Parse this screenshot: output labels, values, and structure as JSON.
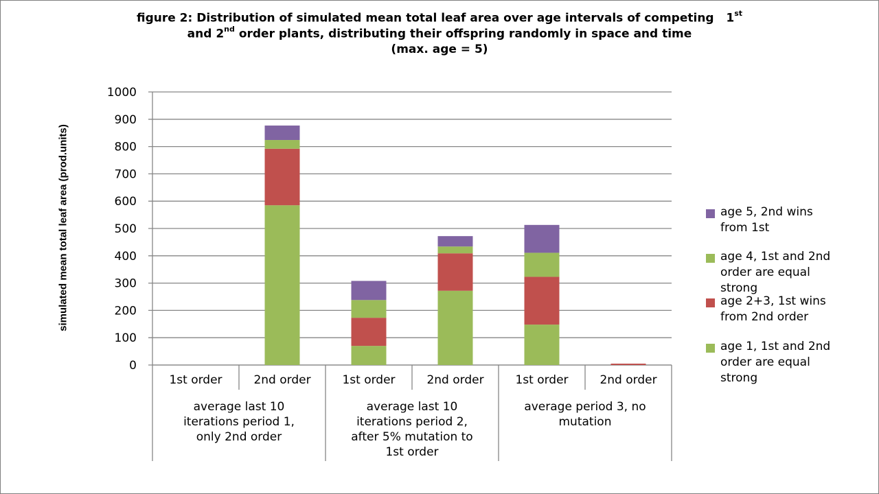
{
  "title": {
    "line1_prefix": "figure 2: Distribution of simulated mean total leaf area over age intervals of competing",
    "line1_num": "1",
    "line1_sup": "st",
    "line2_prefix": "and 2",
    "line2_sup": "nd",
    "line2_rest": "order plants, distributing their offspring randomly in space and time",
    "line3": "(max. age = 5)"
  },
  "chart_data": {
    "type": "bar",
    "stacked": true,
    "ylabel": "simulated mean total leaf area (prod.units)",
    "ylim": [
      0,
      1000
    ],
    "ytick_step": 100,
    "yticks": [
      "0",
      "100",
      "200",
      "300",
      "400",
      "500",
      "600",
      "700",
      "800",
      "900",
      "1000"
    ],
    "grid": true,
    "legend_position": "right",
    "groups": [
      {
        "label": "average last 10 iterations period 1, only 2nd order",
        "lines": [
          "average last 10",
          "iterations period 1,",
          "only 2nd order"
        ],
        "categories": [
          "1st order",
          "2nd order"
        ]
      },
      {
        "label": "average last 10 iterations period 2, after 5% mutation to 1st order",
        "lines": [
          "average last 10",
          "iterations period 2,",
          "after 5% mutation to",
          "1st order"
        ],
        "categories": [
          "1st order",
          "2nd order"
        ]
      },
      {
        "label": "average period 3, no mutation",
        "lines": [
          "average period 3, no",
          "mutation"
        ],
        "categories": [
          "1st order",
          "2nd order"
        ]
      }
    ],
    "categories": [
      "1st order",
      "2nd order",
      "1st order",
      "2nd order",
      "1st order",
      "2nd order"
    ],
    "series": [
      {
        "name": "age 1, 1st and 2nd order are equal strong",
        "legend_lines": [
          "age 1, 1st and 2nd",
          "order are equal",
          "strong"
        ],
        "color": "#9bbb59",
        "values": [
          0,
          585,
          70,
          272,
          148,
          0
        ]
      },
      {
        "name": "age 2+3, 1st wins from 2nd order",
        "legend_lines": [
          "age 2+3, 1st wins",
          "from 2nd order"
        ],
        "color": "#c0504d",
        "values": [
          0,
          207,
          103,
          137,
          175,
          5
        ]
      },
      {
        "name": "age 4, 1st and 2nd order are equal strong",
        "legend_lines": [
          "age 4, 1st and 2nd",
          "order are equal",
          "strong"
        ],
        "color": "#9bbb59",
        "values": [
          0,
          32,
          65,
          25,
          88,
          0
        ]
      },
      {
        "name": "age 5, 2nd wins from 1st",
        "legend_lines": [
          "age 5, 2nd wins",
          "from 1st"
        ],
        "color": "#8064a2",
        "values": [
          0,
          53,
          70,
          38,
          102,
          0
        ]
      }
    ]
  }
}
